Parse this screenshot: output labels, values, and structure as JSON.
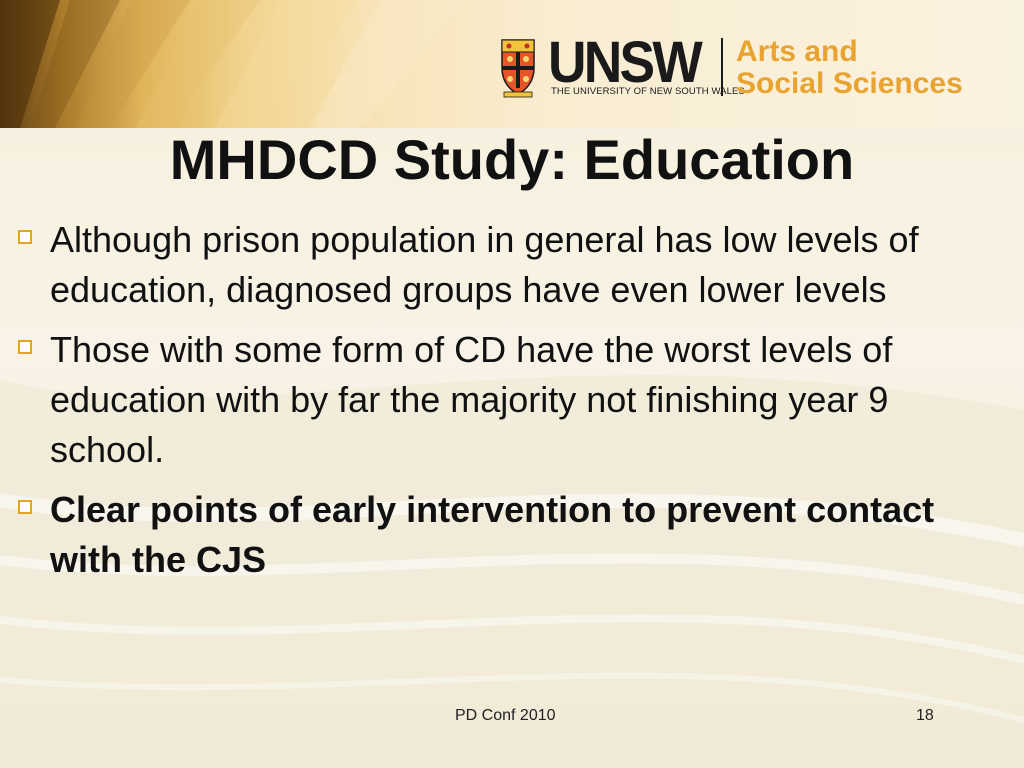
{
  "header": {
    "logo": {
      "brand": "UNSW",
      "university": "THE UNIVERSITY OF NEW SOUTH WALES",
      "faculty_line1": "Arts and",
      "faculty_line2": "Social Sciences"
    }
  },
  "title": "MHDCD Study: Education",
  "bullets": [
    {
      "text": "Although prison population in general has low levels of education, diagnosed groups have even lower levels",
      "bold": false
    },
    {
      "text": "Those with some form of CD have the worst levels of education with by far the majority not finishing year 9 school.",
      "bold": false
    },
    {
      "text": "Clear points of early intervention to prevent contact with the CJS",
      "bold": true
    }
  ],
  "footer": {
    "conference": "PD Conf 2010",
    "page_number": "18"
  },
  "colors": {
    "accent": "#e2a424",
    "faculty_text": "#e8a330",
    "text": "#111111"
  }
}
